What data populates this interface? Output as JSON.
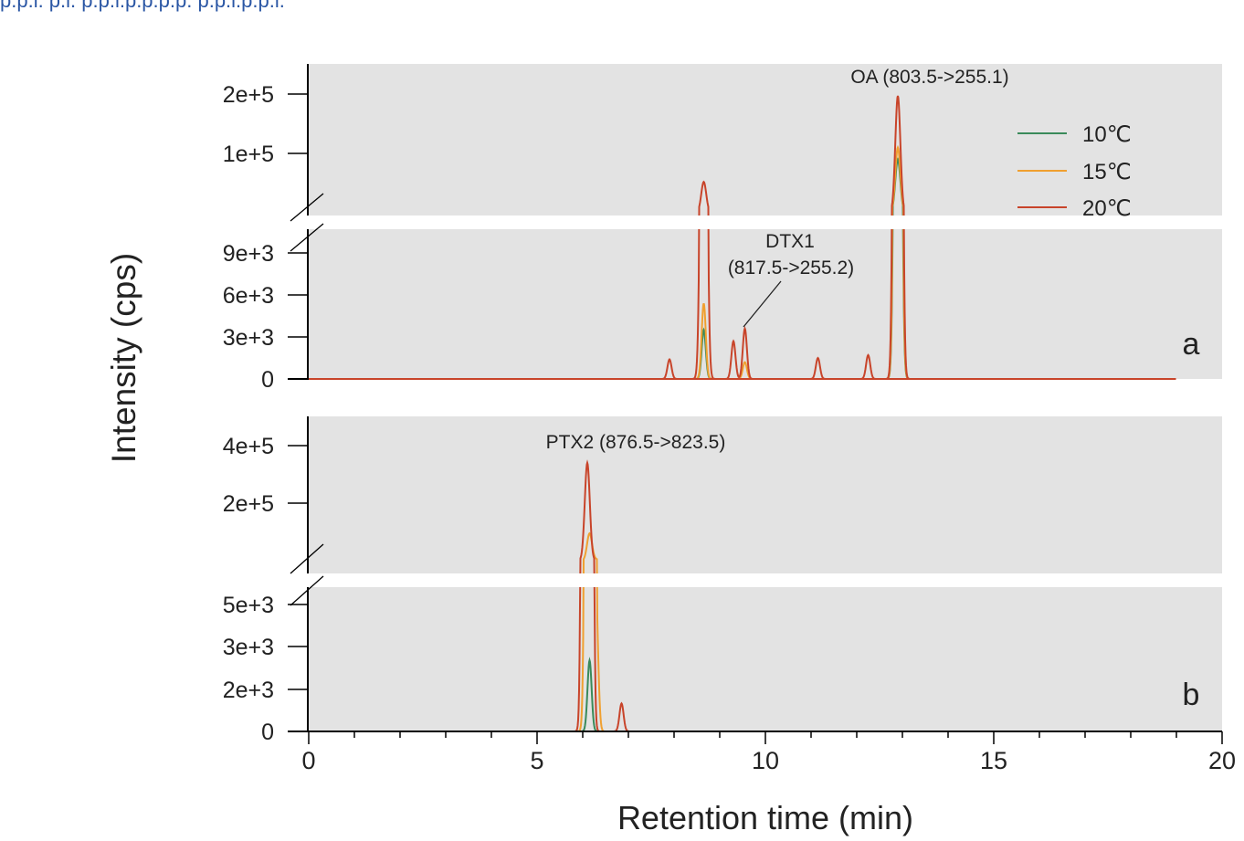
{
  "header_snippet": "p.p.l.     p.l.     p.p.l.p.p.p.p.     p.p.l.p.p.l.",
  "figure": {
    "ylabel": "Intensity (cps)",
    "xlabel": "Retention time (min)",
    "series_colors": {
      "10℃": "#3a8a5a",
      "15℃": "#f0a030",
      "20℃": "#c8442a"
    }
  },
  "chart_data": [
    {
      "type": "line",
      "panel_label": "a",
      "xlim": [
        0,
        20
      ],
      "ytick_labels_lower": [
        "0",
        "3e+3",
        "6e+3",
        "9e+3"
      ],
      "ytick_labels_upper": [
        "1e+5",
        "2e+5"
      ],
      "ylim_lower": [
        0,
        9000
      ],
      "ylim_upper_ticks": [
        100000,
        200000
      ],
      "axis_break": true,
      "grid": false,
      "legend": {
        "placement": "top-right",
        "entries": [
          "10℃",
          "15℃",
          "20℃"
        ]
      },
      "annotations": [
        {
          "text": "OA (803.5->255.1)",
          "x": 12.9
        },
        {
          "text_lines": [
            "DTX1",
            "(817.5->255.2)"
          ],
          "x": 9.55
        }
      ],
      "series": [
        {
          "name": "10℃",
          "peaks": [
            {
              "x": 8.65,
              "y": 3500
            },
            {
              "x": 12.9,
              "y": 90000
            }
          ]
        },
        {
          "name": "15℃",
          "peaks": [
            {
              "x": 8.65,
              "y": 5400
            },
            {
              "x": 9.55,
              "y": 1200
            },
            {
              "x": 12.9,
              "y": 110000
            }
          ]
        },
        {
          "name": "20℃",
          "peaks": [
            {
              "x": 7.9,
              "y": 1400
            },
            {
              "x": 8.65,
              "y": 52000
            },
            {
              "x": 9.3,
              "y": 2700
            },
            {
              "x": 9.55,
              "y": 3600
            },
            {
              "x": 11.15,
              "y": 1500
            },
            {
              "x": 12.25,
              "y": 1700
            },
            {
              "x": 12.9,
              "y": 197000
            }
          ]
        }
      ]
    },
    {
      "type": "line",
      "panel_label": "b",
      "xlim": [
        0,
        20
      ],
      "xticks": [
        0,
        5,
        10,
        15,
        20
      ],
      "ytick_labels_lower": [
        "0",
        "2e+3",
        "3e+3",
        "5e+3"
      ],
      "ytick_labels_upper": [
        "2e+5",
        "4e+5"
      ],
      "axis_break": true,
      "grid": false,
      "annotations": [
        {
          "text": "PTX2 (876.5->823.5)",
          "x": 6.1
        }
      ],
      "series": [
        {
          "name": "10℃",
          "peaks": [
            {
              "x": 6.15,
              "y": 2800
            }
          ]
        },
        {
          "name": "15℃",
          "peaks": [
            {
              "x": 6.15,
              "y": 95000
            },
            {
              "x": 6.3,
              "y": 4000
            }
          ]
        },
        {
          "name": "20℃",
          "peaks": [
            {
              "x": 6.1,
              "y": 340000
            },
            {
              "x": 6.85,
              "y": 1100
            }
          ]
        }
      ]
    }
  ]
}
